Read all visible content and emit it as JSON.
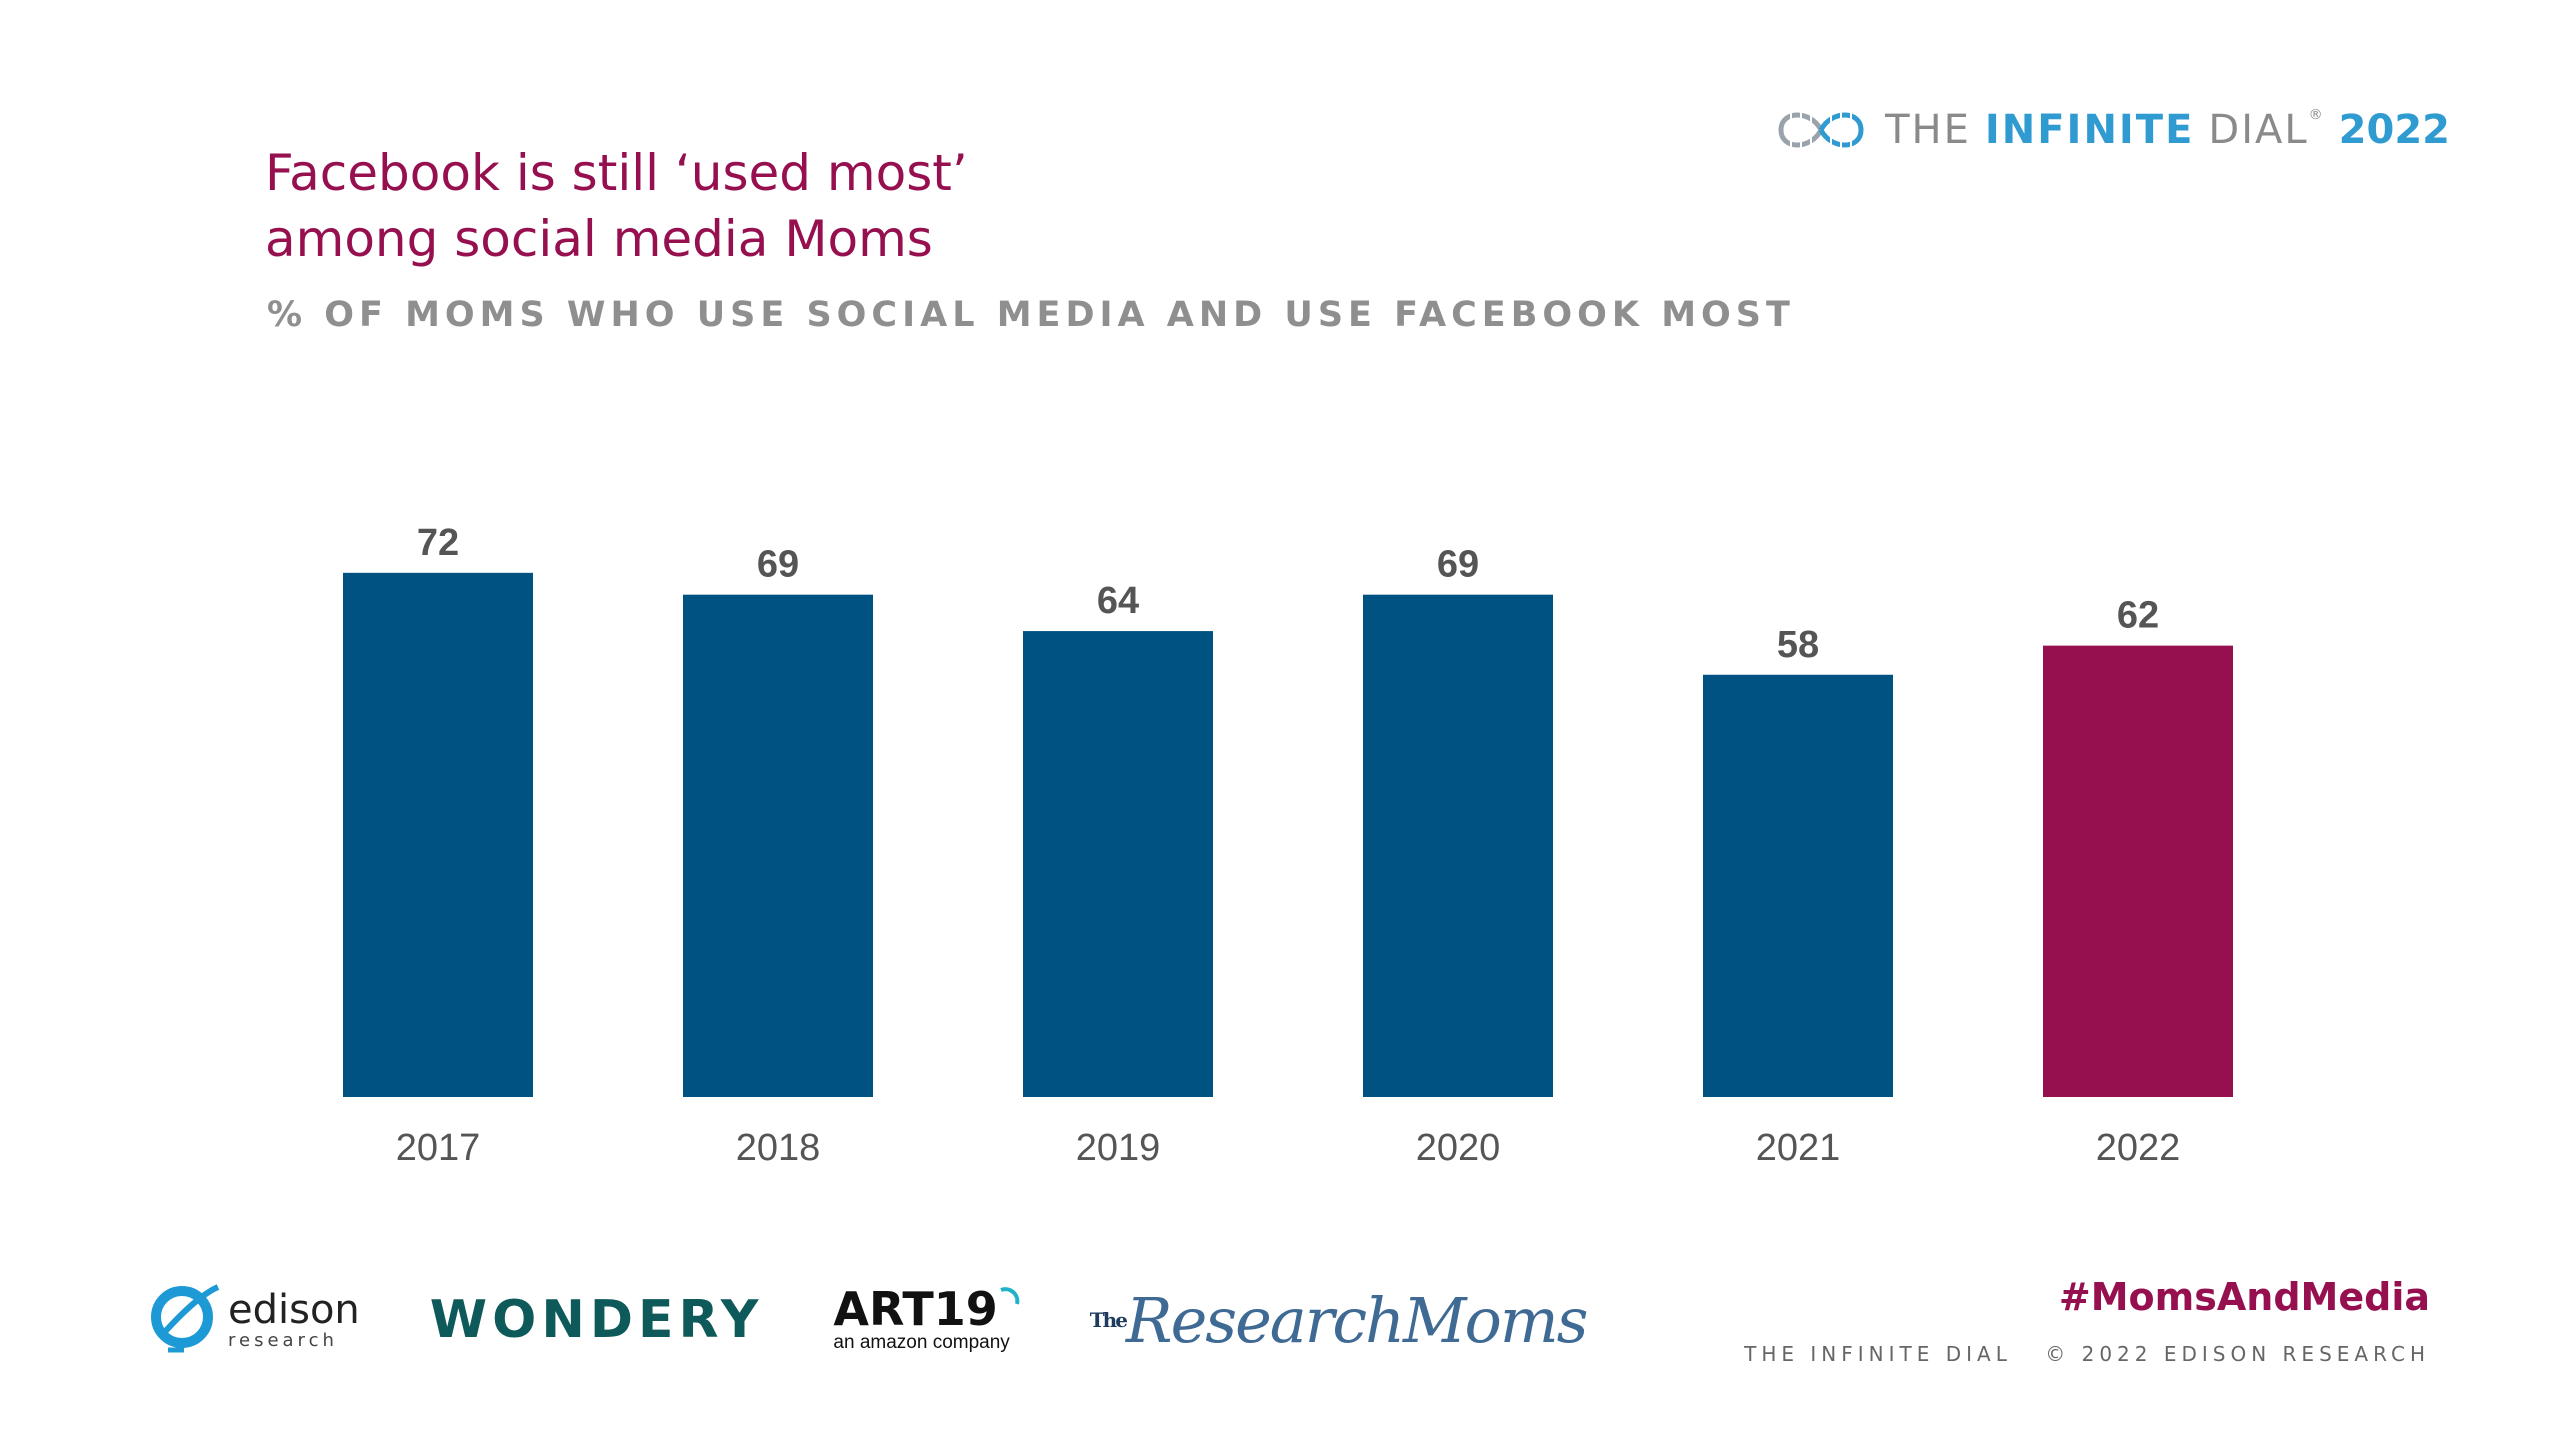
{
  "header": {
    "title_line1": "Facebook is still ‘used most’",
    "title_line2": "among social media Moms",
    "subtitle": "% OF MOMS WHO USE SOCIAL MEDIA AND USE FACEBOOK MOST"
  },
  "brand": {
    "the": "THE",
    "infinite": "INFINITE",
    "dial": "DIAL",
    "registered": "®",
    "year": "2022",
    "icon": "infinity-icon"
  },
  "chart_data": {
    "type": "bar",
    "categories": [
      "2017",
      "2018",
      "2019",
      "2020",
      "2021",
      "2022"
    ],
    "values": [
      72,
      69,
      64,
      69,
      58,
      62
    ],
    "title": "Facebook is still ‘used most’ among social media Moms",
    "subtitle": "% OF MOMS WHO USE SOCIAL MEDIA AND USE FACEBOOK MOST",
    "ylim": [
      0,
      80
    ],
    "grid": false,
    "data_labels": true,
    "colors": {
      "default": "#005282",
      "highlight": "#961050"
    },
    "highlight_index": 5
  },
  "footer": {
    "logos": {
      "edison_word": "edison",
      "edison_sub": "research",
      "wondery": "WONDERY",
      "art19": "ART19",
      "art19_sub": "an amazon company",
      "research_moms_the": "The",
      "research_moms": "ResearchMoms"
    },
    "hashtag": "#MomsAndMedia",
    "copyright_left": "THE INFINITE DIAL",
    "copyright_right": "© 2022 EDISON RESEARCH"
  }
}
